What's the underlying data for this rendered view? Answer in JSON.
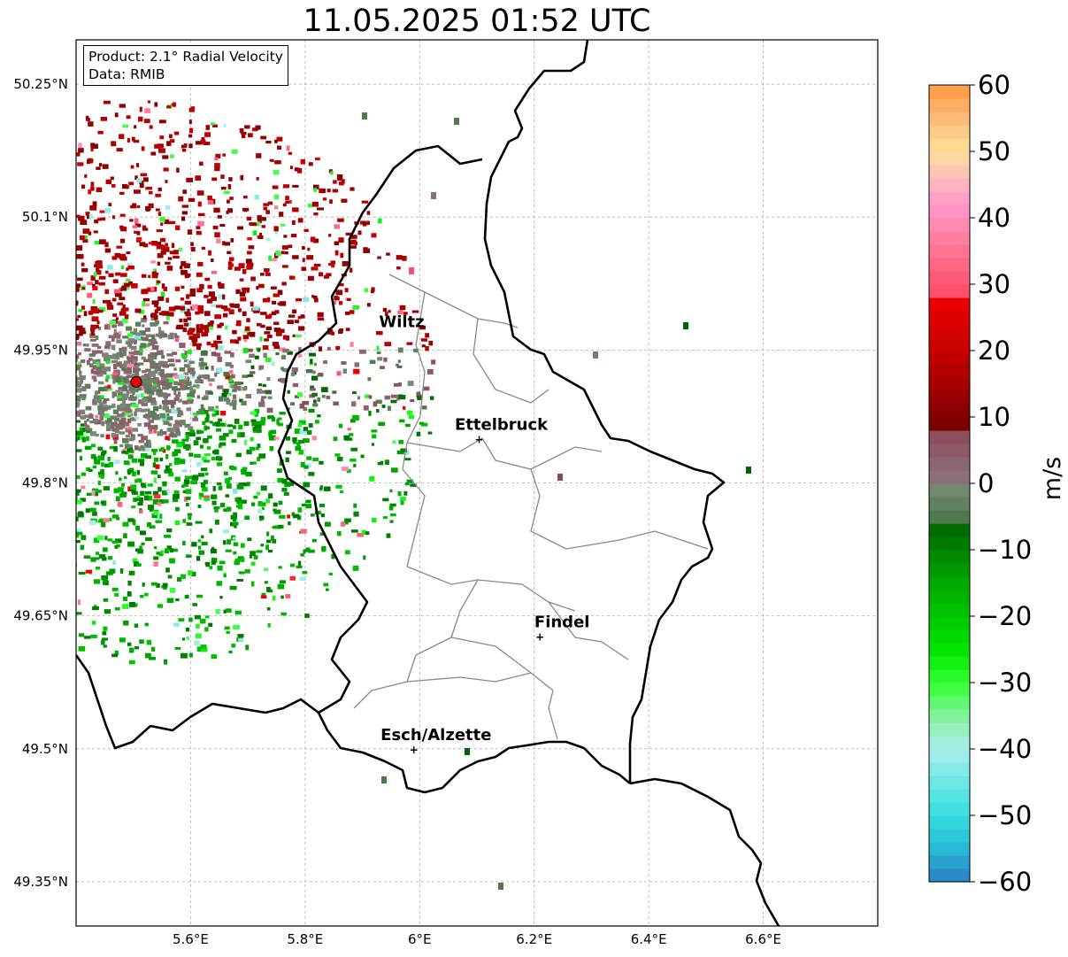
{
  "title": "11.05.2025 01:52 UTC",
  "info": {
    "product": "Product: 2.1° Radial Velocity",
    "data": "Data: RMIB"
  },
  "map": {
    "lon_range": [
      5.4,
      6.8
    ],
    "lat_range": [
      49.3,
      50.3
    ],
    "lat_ticks": [
      {
        "value": 50.25,
        "label": "50.25°N"
      },
      {
        "value": 50.1,
        "label": "50.1°N"
      },
      {
        "value": 49.95,
        "label": "49.95°N"
      },
      {
        "value": 49.8,
        "label": "49.8°N"
      },
      {
        "value": 49.65,
        "label": "49.65°N"
      },
      {
        "value": 49.5,
        "label": "49.5°N"
      },
      {
        "value": 49.35,
        "label": "49.35°N"
      }
    ],
    "lon_ticks": [
      {
        "value": 5.6,
        "label": "5.6°E"
      },
      {
        "value": 5.8,
        "label": "5.8°E"
      },
      {
        "value": 6.0,
        "label": "6°E"
      },
      {
        "value": 6.2,
        "label": "6.2°E"
      },
      {
        "value": 6.4,
        "label": "6.4°E"
      },
      {
        "value": 6.6,
        "label": "6.6°E"
      }
    ],
    "radar_site": {
      "lon": 5.505,
      "lat": 49.914,
      "color": "#e8000b"
    },
    "cities": [
      {
        "name": "Wiltz",
        "lon": 5.93,
        "lat": 49.966,
        "marker": false
      },
      {
        "name": "Ettelbruck",
        "lon": 6.104,
        "lat": 49.85,
        "marker": true
      },
      {
        "name": "Findel",
        "lon": 6.21,
        "lat": 49.627,
        "marker": true
      },
      {
        "name": "Esch/Alzette",
        "lon": 5.99,
        "lat": 49.5,
        "marker": true
      }
    ]
  },
  "colorbar": {
    "label": "m/s",
    "min": -60,
    "max": 60,
    "ticks": [
      {
        "value": 60,
        "label": "60"
      },
      {
        "value": 50,
        "label": "50"
      },
      {
        "value": 40,
        "label": "40"
      },
      {
        "value": 30,
        "label": "30"
      },
      {
        "value": 20,
        "label": "20"
      },
      {
        "value": 10,
        "label": "10"
      },
      {
        "value": 0,
        "label": "0"
      },
      {
        "value": -10,
        "label": "−10"
      },
      {
        "value": -20,
        "label": "−20"
      },
      {
        "value": -30,
        "label": "−30"
      },
      {
        "value": -40,
        "label": "−40"
      },
      {
        "value": -50,
        "label": "−50"
      },
      {
        "value": -60,
        "label": "−60"
      }
    ],
    "stops": [
      {
        "value": -60,
        "color": "#2a7fc4"
      },
      {
        "value": -55,
        "color": "#29b9d6"
      },
      {
        "value": -50,
        "color": "#33dede"
      },
      {
        "value": -40,
        "color": "#aaeeee"
      },
      {
        "value": -36,
        "color": "#8ff0b0"
      },
      {
        "value": -30,
        "color": "#33ff33"
      },
      {
        "value": -25,
        "color": "#00e600"
      },
      {
        "value": -15,
        "color": "#00a800"
      },
      {
        "value": -6,
        "color": "#006400"
      },
      {
        "value": -5,
        "color": "#4f7a4f"
      },
      {
        "value": 0,
        "color": "#7c8a7a"
      },
      {
        "value": 1,
        "color": "#8a7078"
      },
      {
        "value": 8,
        "color": "#8c4a58"
      },
      {
        "value": 9,
        "color": "#7a0000"
      },
      {
        "value": 20,
        "color": "#c80000"
      },
      {
        "value": 28,
        "color": "#f00000"
      },
      {
        "value": 29,
        "color": "#ff4f6a"
      },
      {
        "value": 36,
        "color": "#ff7a9a"
      },
      {
        "value": 42,
        "color": "#ff99cc"
      },
      {
        "value": 46,
        "color": "#ffbbbb"
      },
      {
        "value": 50,
        "color": "#ffe099"
      },
      {
        "value": 55,
        "color": "#ffbb77"
      },
      {
        "value": 60,
        "color": "#ff9944"
      }
    ]
  }
}
